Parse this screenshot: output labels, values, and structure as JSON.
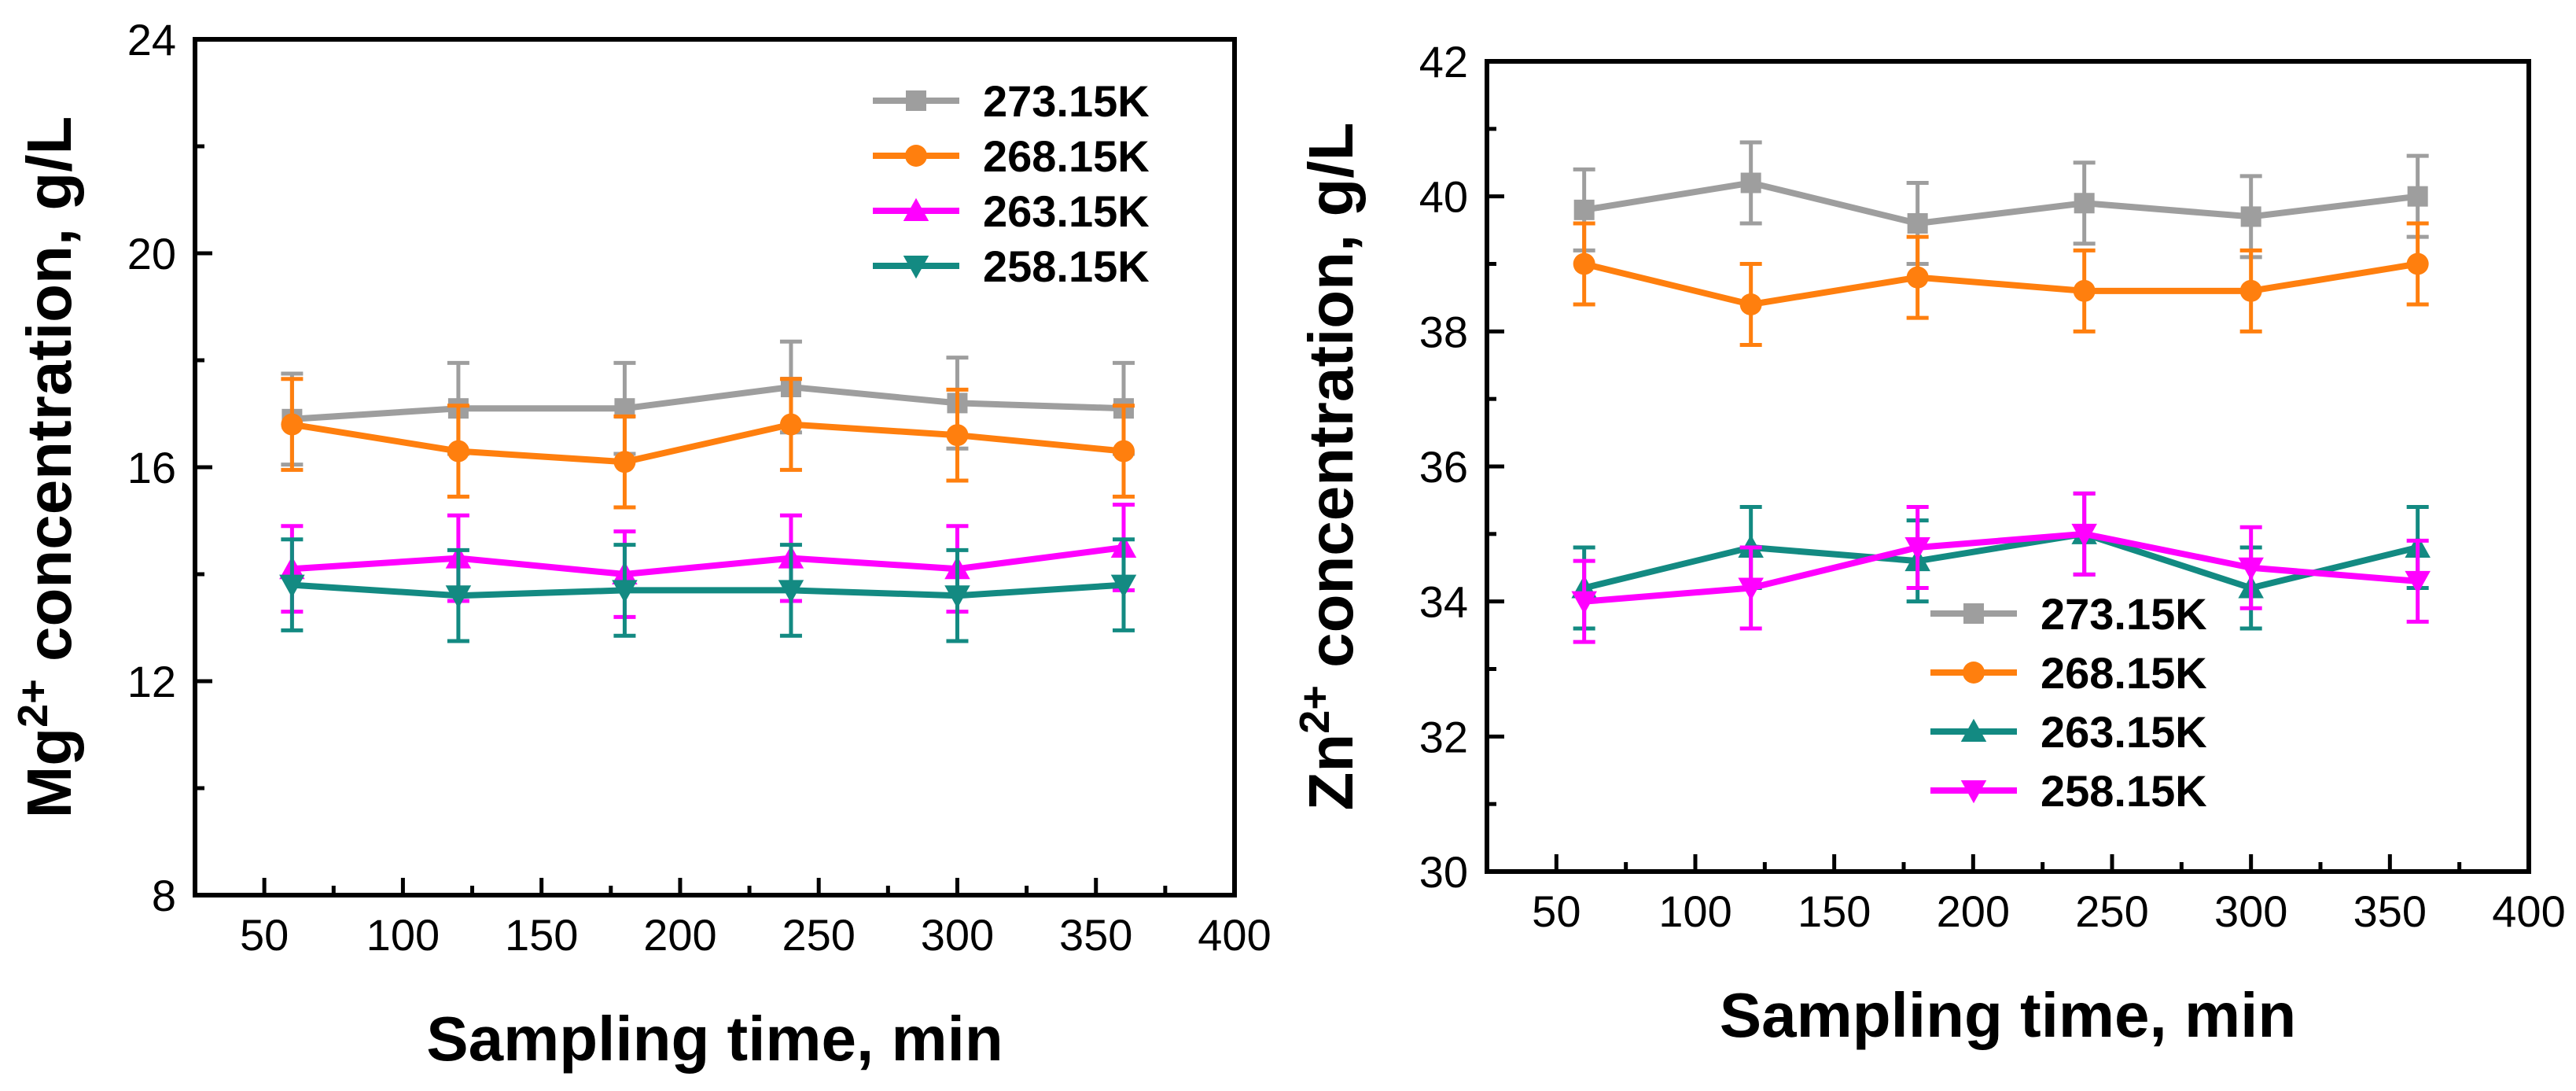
{
  "chart_data": [
    {
      "type": "line",
      "title": "",
      "xlabel": "Sampling time, min",
      "ylabel": {
        "base": "Mg",
        "sup": "2+",
        "rest": " concentration, g/L"
      },
      "xlim": [
        25,
        400
      ],
      "ylim": [
        8,
        24
      ],
      "xticks": [
        50,
        100,
        150,
        200,
        250,
        300,
        350,
        400
      ],
      "yticks": [
        8,
        12,
        16,
        20,
        24
      ],
      "legend_position": "top-right",
      "x": [
        60,
        120,
        180,
        240,
        300,
        360
      ],
      "series": [
        {
          "name": "273.15K",
          "color": "#9e9e9e",
          "marker": "square",
          "values": [
            16.9,
            17.1,
            17.1,
            17.5,
            17.2,
            17.1
          ],
          "errors": [
            0.85,
            0.85,
            0.85,
            0.85,
            0.85,
            0.85
          ]
        },
        {
          "name": "268.15K",
          "color": "#ff7f0e",
          "marker": "circle",
          "values": [
            16.8,
            16.3,
            16.1,
            16.8,
            16.6,
            16.3
          ],
          "errors": [
            0.85,
            0.85,
            0.85,
            0.85,
            0.85,
            0.85
          ]
        },
        {
          "name": "263.15K",
          "color": "#ff00ff",
          "marker": "triangle-up",
          "values": [
            14.1,
            14.3,
            14.0,
            14.3,
            14.1,
            14.5
          ],
          "errors": [
            0.8,
            0.8,
            0.8,
            0.8,
            0.8,
            0.8
          ]
        },
        {
          "name": "258.15K",
          "color": "#138a82",
          "marker": "triangle-down",
          "values": [
            13.8,
            13.6,
            13.7,
            13.7,
            13.6,
            13.8
          ],
          "errors": [
            0.85,
            0.85,
            0.85,
            0.85,
            0.85,
            0.85
          ]
        }
      ]
    },
    {
      "type": "line",
      "title": "",
      "xlabel": "Sampling time, min",
      "ylabel": {
        "base": "Zn",
        "sup": "2+",
        "rest": " concentration, g/L"
      },
      "xlim": [
        25,
        400
      ],
      "ylim": [
        30,
        42
      ],
      "xticks": [
        50,
        100,
        150,
        200,
        250,
        300,
        350,
        400
      ],
      "yticks": [
        30,
        32,
        34,
        36,
        38,
        40,
        42
      ],
      "legend_position": "center-right",
      "x": [
        60,
        120,
        180,
        240,
        300,
        360
      ],
      "series": [
        {
          "name": "273.15K",
          "color": "#9e9e9e",
          "marker": "square",
          "values": [
            39.8,
            40.2,
            39.6,
            39.9,
            39.7,
            40.0
          ],
          "errors": [
            0.6,
            0.6,
            0.6,
            0.6,
            0.6,
            0.6
          ]
        },
        {
          "name": "268.15K",
          "color": "#ff7f0e",
          "marker": "circle",
          "values": [
            39.0,
            38.4,
            38.8,
            38.6,
            38.6,
            39.0
          ],
          "errors": [
            0.6,
            0.6,
            0.6,
            0.6,
            0.6,
            0.6
          ]
        },
        {
          "name": "263.15K",
          "color": "#138a82",
          "marker": "triangle-up",
          "values": [
            34.2,
            34.8,
            34.6,
            35.0,
            34.2,
            34.8
          ],
          "errors": [
            0.6,
            0.6,
            0.6,
            0.6,
            0.6,
            0.6
          ]
        },
        {
          "name": "258.15K",
          "color": "#ff00ff",
          "marker": "triangle-down",
          "values": [
            34.0,
            34.2,
            34.8,
            35.0,
            34.5,
            34.3
          ],
          "errors": [
            0.6,
            0.6,
            0.6,
            0.6,
            0.6,
            0.6
          ]
        }
      ]
    }
  ]
}
